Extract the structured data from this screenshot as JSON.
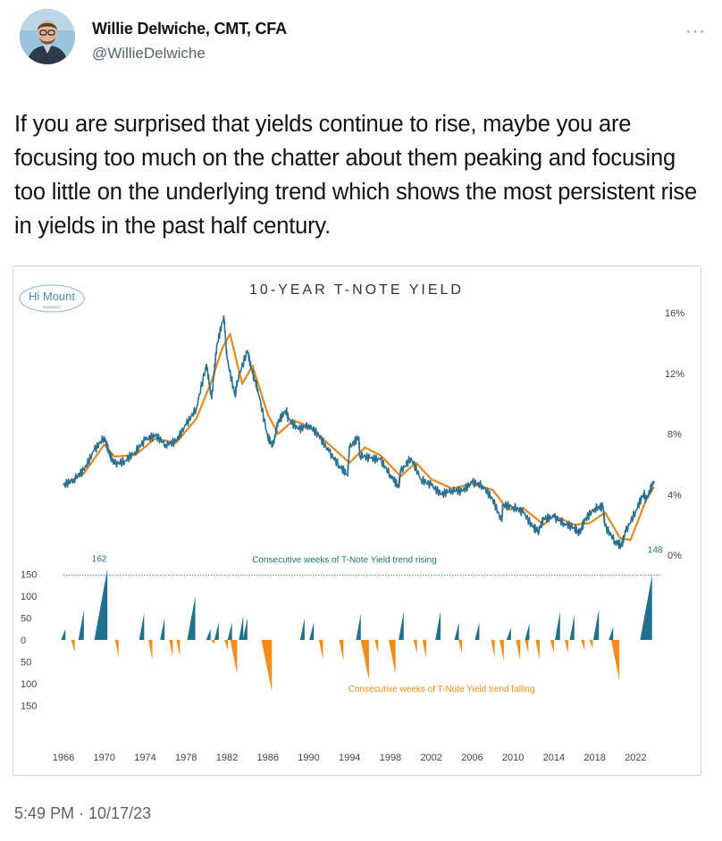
{
  "author": {
    "name": "Willie Delwiche, CMT, CFA",
    "handle": "@WillieDelwiche"
  },
  "more_icon": "···",
  "tweet_text": "If you are surprised that yields continue to rise, maybe you are focusing too much on the chatter about them peaking and focusing too little on the underlying trend which shows the most persistent rise in yields in the past half century.",
  "timestamp": "5:49 PM · 10/17/23",
  "logo": {
    "text": "Hi Mount",
    "subtext": "RESEARCH"
  },
  "colors": {
    "yield_line": "#2a7090",
    "trend_line": "#e8871e",
    "rising": "#20708f",
    "falling": "#f28c1a"
  },
  "chart_data": {
    "type": "line",
    "title": "10-YEAR T-NOTE YIELD",
    "x_ticks": [
      "1966",
      "1970",
      "1974",
      "1978",
      "1982",
      "1986",
      "1990",
      "1994",
      "1998",
      "2002",
      "2006",
      "2010",
      "2014",
      "2018",
      "2022"
    ],
    "yield_axis": {
      "ticks": [
        "16%",
        "12%",
        "8%",
        "4%",
        "0%"
      ],
      "ylim": [
        0,
        16
      ]
    },
    "weeks_axis": {
      "ticks": [
        "150",
        "100",
        "50",
        "0",
        "50",
        "100",
        "150"
      ],
      "ylim": [
        -150,
        150
      ]
    },
    "series": [
      {
        "name": "10-Year T-Note Yield",
        "x": [
          1966,
          1967,
          1968,
          1969,
          1970,
          1970.5,
          1971,
          1972,
          1973,
          1974,
          1975,
          1976,
          1977,
          1978,
          1979,
          1980,
          1980.5,
          1981,
          1981.7,
          1982,
          1982.8,
          1983,
          1984,
          1984.5,
          1985,
          1986,
          1986.5,
          1987,
          1987.8,
          1988,
          1989,
          1990,
          1991,
          1992,
          1993,
          1993.8,
          1994,
          1994.9,
          1995,
          1996,
          1997,
          1998,
          1998.8,
          1999,
          2000,
          2001,
          2002,
          2003,
          2004,
          2005,
          2006,
          2007,
          2008,
          2008.9,
          2009,
          2010,
          2011,
          2012,
          2012.5,
          2013,
          2014,
          2015,
          2016,
          2016.5,
          2017,
          2018,
          2018.8,
          2019,
          2020,
          2020.6,
          2021,
          2022,
          2022.8,
          2023,
          2023.8
        ],
        "values": [
          4.6,
          5.0,
          5.6,
          6.9,
          7.8,
          6.7,
          6.0,
          6.2,
          6.8,
          7.6,
          7.9,
          7.3,
          7.5,
          8.6,
          9.7,
          12.6,
          10.3,
          13.8,
          15.8,
          13.0,
          10.5,
          11.5,
          13.5,
          12.0,
          11.0,
          7.8,
          7.2,
          8.8,
          9.6,
          9.0,
          8.3,
          8.6,
          7.9,
          6.8,
          5.9,
          5.3,
          7.1,
          7.8,
          6.6,
          6.4,
          6.3,
          5.3,
          4.5,
          5.5,
          6.4,
          5.0,
          4.6,
          4.0,
          4.3,
          4.2,
          4.8,
          4.6,
          3.7,
          2.2,
          3.3,
          3.2,
          2.8,
          1.8,
          1.6,
          2.4,
          2.5,
          2.1,
          1.8,
          1.4,
          2.3,
          3.1,
          3.2,
          1.9,
          0.9,
          0.6,
          1.5,
          2.9,
          4.1,
          3.6,
          4.9
        ]
      },
      {
        "name": "Trend",
        "x": [
          1966,
          1968,
          1970,
          1971,
          1973,
          1975,
          1977,
          1979,
          1980.5,
          1981.5,
          1982.3,
          1983.5,
          1984.5,
          1986,
          1987,
          1988.5,
          1990,
          1992,
          1994,
          1995.5,
          1997,
          1999,
          2000.5,
          2002,
          2004,
          2006,
          2008,
          2009.5,
          2011,
          2013,
          2014,
          2016,
          2017.5,
          2019,
          2020.5,
          2021.5,
          2023,
          2023.8
        ],
        "values": [
          4.6,
          5.4,
          7.3,
          6.5,
          6.6,
          7.7,
          7.4,
          9.0,
          11.5,
          13.6,
          14.6,
          11.3,
          12.5,
          9.3,
          8.0,
          8.9,
          8.5,
          7.3,
          6.1,
          7.1,
          6.6,
          5.2,
          6.1,
          5.0,
          4.4,
          4.7,
          4.3,
          3.0,
          3.1,
          2.0,
          2.6,
          2.0,
          2.1,
          2.8,
          1.1,
          1.0,
          3.6,
          4.5
        ]
      }
    ],
    "weeks_series": {
      "x": [
        1966.2,
        1968.0,
        1970.3,
        1973.9,
        1975.9,
        1978.9,
        1980.4,
        1981.2,
        1982.5,
        1983.6,
        1984.0,
        1989.6,
        1990.5,
        1995.1,
        1999.3,
        2002.9,
        2004.7,
        2006.7,
        2009.8,
        2011.6,
        2014.6,
        2016.0,
        2018.4,
        2019.8,
        2023.6,
        1967.1,
        1971.4,
        1974.7,
        1976.7,
        1977.4,
        1980.8,
        1982.1,
        1983.0,
        1986.4,
        1991.4,
        1993.4,
        1995.9,
        1996.8,
        1998.5,
        2000.6,
        2001.5,
        2005.0,
        2008.2,
        2009.1,
        2010.7,
        2011.5,
        2012.6,
        2014.0,
        2015.4,
        2017.0,
        2020.4,
        2017.8
      ],
      "values": [
        25,
        68,
        162,
        62,
        50,
        100,
        25,
        40,
        40,
        55,
        50,
        50,
        40,
        60,
        64,
        65,
        40,
        40,
        28,
        38,
        64,
        58,
        70,
        30,
        148,
        -28,
        -38,
        -45,
        -40,
        -38,
        -10,
        -25,
        -78,
        -118,
        -45,
        -48,
        -92,
        -30,
        -78,
        -30,
        -42,
        -30,
        -40,
        -48,
        -48,
        -30,
        -45,
        -30,
        -30,
        -24,
        -92,
        -20
      ],
      "max_rising_label": "162",
      "last_label": "148",
      "rising_label": "Consecutive weeks of T-Note Yield trend rising",
      "falling_label": "Consecutive weeks of T-Note Yield trend falling",
      "reference_line": 148
    }
  }
}
